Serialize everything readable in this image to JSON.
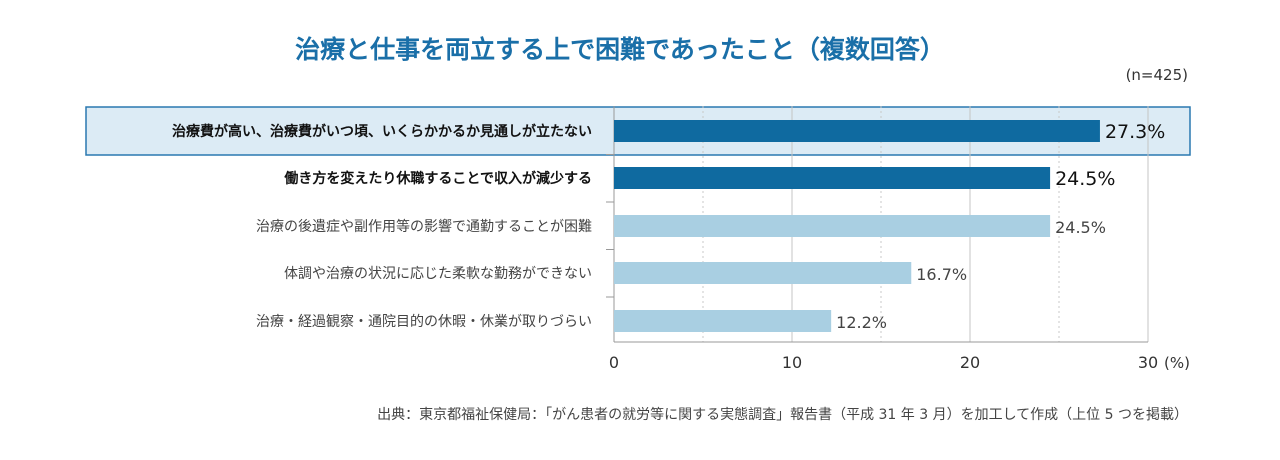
{
  "title": "治療と仕事を両立する上で困難であったこと（複数回答）",
  "n_note": "(n=425)",
  "source": "出典：東京都福祉保健局：「がん患者の就労等に関する実態調査」報告書（平成 31 年 3 月）を加工して作成（上位 5 つを掲載）",
  "colors": {
    "bar_dark": "#0f6aa0",
    "bar_light": "#a9cfe2",
    "highlight_bg": "#dcebf5",
    "highlight_border": "#2a78b0"
  },
  "chart_data": {
    "type": "bar",
    "orientation": "horizontal",
    "categories": [
      "治療費が高い、治療費がいつ頃、いくらかかるか見通しが立たない",
      "働き方を変えたり休職することで収入が減少する",
      "治療の後遺症や副作用等の影響で通勤することが困難",
      "体調や治療の状況に応じた柔軟な勤務ができない",
      "治療・経過観察・通院目的の休暇・休業が取りづらい"
    ],
    "values": [
      27.3,
      24.5,
      24.5,
      16.7,
      12.2
    ],
    "value_labels": [
      "27.3%",
      "24.5%",
      "24.5%",
      "16.7%",
      "12.2%"
    ],
    "emphasis": [
      true,
      true,
      false,
      false,
      false
    ],
    "highlighted_row": 0,
    "xlim": [
      0,
      30
    ],
    "xticks": [
      0,
      10,
      20,
      30
    ],
    "xtick_labels": [
      "0",
      "10",
      "20",
      "30"
    ],
    "xunit": "(%)",
    "grid": true
  }
}
